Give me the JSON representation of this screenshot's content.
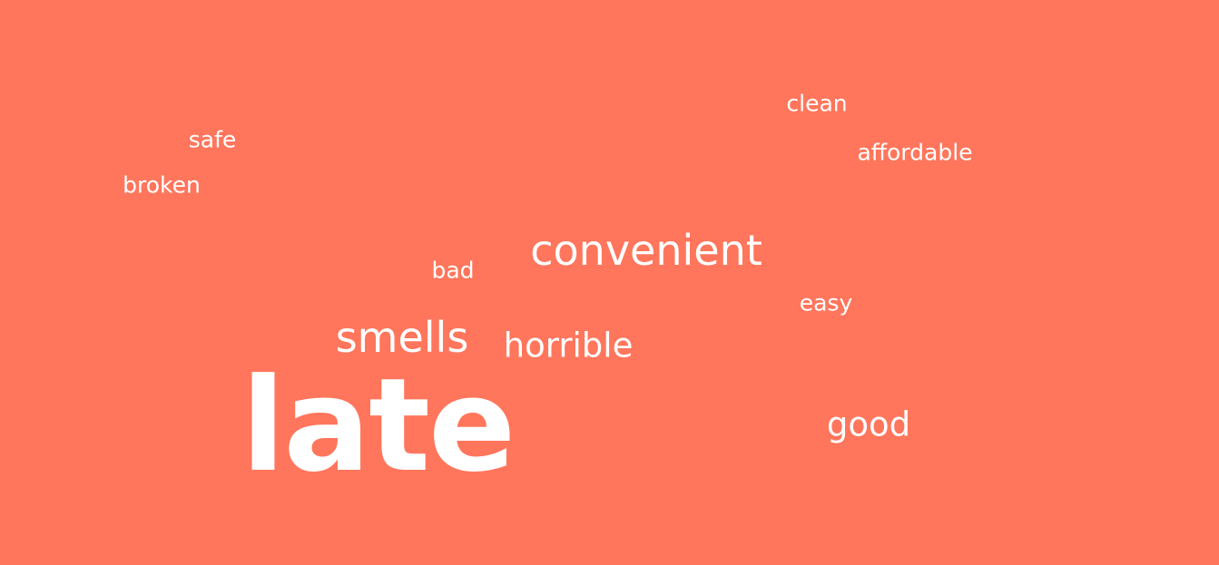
{
  "colors": {
    "background": "#FF765C",
    "text": "#FFFFFF"
  },
  "words": [
    {
      "text": "late"
    },
    {
      "text": "convenient"
    },
    {
      "text": "smells"
    },
    {
      "text": "horrible"
    },
    {
      "text": "good"
    },
    {
      "text": "clean"
    },
    {
      "text": "safe"
    },
    {
      "text": "affordable"
    },
    {
      "text": "broken"
    },
    {
      "text": "bad"
    },
    {
      "text": "easy"
    }
  ]
}
